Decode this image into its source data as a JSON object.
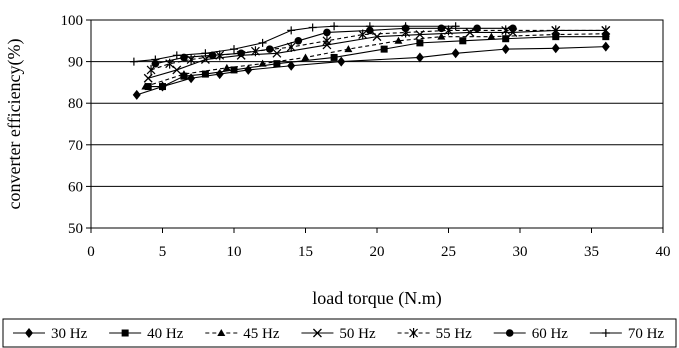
{
  "chart_data": {
    "type": "line",
    "title": "",
    "xlabel": "load torque (N.m)",
    "ylabel": "converter efficiency(%)",
    "xlim": [
      0,
      40
    ],
    "ylim": [
      50,
      100
    ],
    "x_ticks": [
      0,
      5,
      10,
      15,
      20,
      25,
      30,
      35,
      40
    ],
    "y_ticks": [
      50,
      60,
      70,
      80,
      90,
      100
    ],
    "x_tick_labels": [
      "0",
      "5",
      "10",
      "15",
      "20",
      "25",
      "30",
      "35",
      "40"
    ],
    "y_tick_labels": [
      "50",
      "60",
      "70",
      "80",
      "90",
      "100"
    ],
    "grid": "horizontal",
    "legend_position": "bottom",
    "series": [
      {
        "name": "30 Hz",
        "marker": "diamond",
        "dash": "solid",
        "x": [
          3.2,
          5,
          7,
          9,
          11,
          14,
          17.5,
          23,
          25.5,
          29,
          32.5,
          36
        ],
        "y": [
          82,
          84,
          86,
          87,
          88,
          89,
          90,
          91,
          92,
          93,
          93.2,
          93.6
        ]
      },
      {
        "name": "40 Hz",
        "marker": "square",
        "dash": "solid",
        "x": [
          4,
          5,
          6.5,
          8,
          10,
          13,
          17,
          20.5,
          23,
          26,
          29,
          32.5,
          36
        ],
        "y": [
          84,
          84,
          86.5,
          87,
          88,
          89.5,
          91,
          93,
          94.5,
          95,
          95.5,
          96,
          96
        ]
      },
      {
        "name": "45 Hz",
        "marker": "triangle",
        "dash": "dash",
        "x": [
          3.8,
          6.5,
          9.5,
          12,
          15,
          18,
          21.5,
          24.5,
          28,
          32.5,
          36
        ],
        "y": [
          84,
          87,
          88.5,
          89.5,
          91,
          93,
          95,
          96,
          96,
          96.5,
          96.7
        ]
      },
      {
        "name": "50 Hz",
        "marker": "x",
        "dash": "solid",
        "x": [
          4,
          6,
          8,
          10.5,
          13,
          16.5,
          20,
          23,
          26.5,
          29.5,
          32.5,
          36
        ],
        "y": [
          86,
          88,
          90.5,
          91.5,
          92,
          94,
          96,
          96.5,
          97,
          97,
          97.5,
          97.5
        ]
      },
      {
        "name": "55 Hz",
        "marker": "asterisk",
        "dash": "dash",
        "x": [
          4.2,
          5.5,
          7,
          9,
          11.5,
          14,
          16.5,
          19,
          22,
          25,
          29,
          32.5,
          36
        ],
        "y": [
          88,
          89.5,
          90.5,
          91.5,
          92.5,
          93.5,
          95,
          96.5,
          97,
          97.5,
          97.5,
          97.5,
          97.5
        ]
      },
      {
        "name": "60 Hz",
        "marker": "circle",
        "dash": "solid",
        "x": [
          4.5,
          6.5,
          8.5,
          10.5,
          12.5,
          14.5,
          16.5,
          19.5,
          22,
          24.5,
          27,
          29.5
        ],
        "y": [
          89.5,
          91,
          91.5,
          92,
          93,
          95,
          97,
          97.5,
          98,
          98,
          98,
          98
        ]
      },
      {
        "name": "70 Hz",
        "marker": "plus",
        "dash": "solid",
        "x": [
          3,
          4.5,
          6,
          8,
          10,
          12,
          14,
          15.5,
          17,
          19.5,
          22,
          25.5
        ],
        "y": [
          90,
          90.5,
          91.5,
          92,
          93,
          94.5,
          97.5,
          98.2,
          98.5,
          98.5,
          98.5,
          98.5
        ]
      }
    ]
  }
}
